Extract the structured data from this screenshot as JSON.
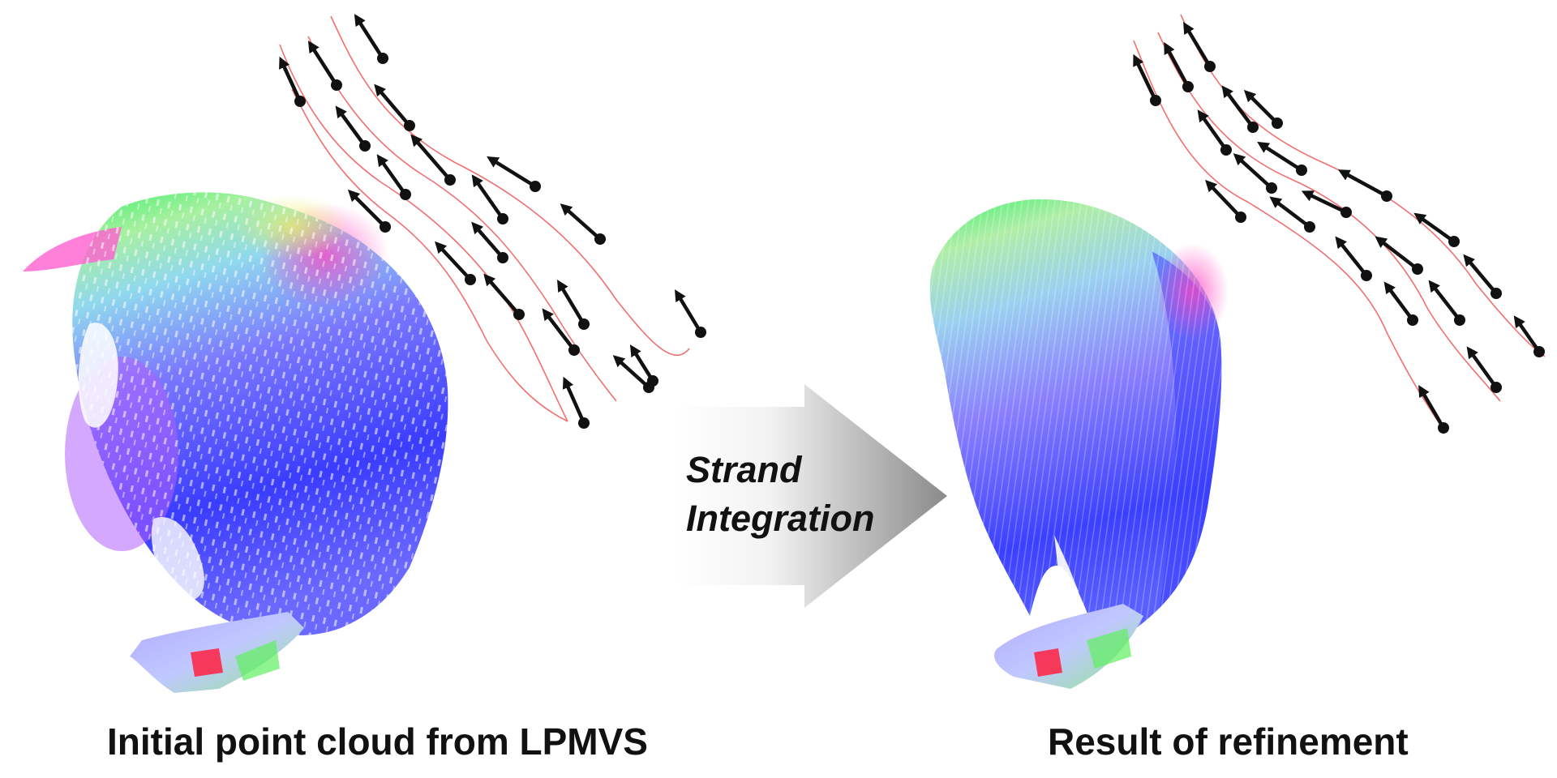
{
  "figure": {
    "arrow_label_line1": "Strand",
    "arrow_label_line2": "Integration",
    "left_caption": "Initial point cloud from LPMVS",
    "right_caption": "Result of refinement"
  },
  "colors": {
    "strand_line": "#f07070",
    "vector_arrow": "#111111",
    "arrow_gradient_light": "#ffffff",
    "arrow_gradient_dark": "#8a8a8a",
    "point_cloud_green": "#3cf06a",
    "point_cloud_cyan": "#80e0e8",
    "point_cloud_blue": "#3040ff",
    "point_cloud_violet": "#a060ff",
    "point_cloud_pink": "#ff40c0",
    "point_cloud_red": "#ff2040"
  },
  "icons": {
    "orientation_vector": "arrow-with-dot-icon",
    "process_arrow": "block-arrow-icon"
  }
}
